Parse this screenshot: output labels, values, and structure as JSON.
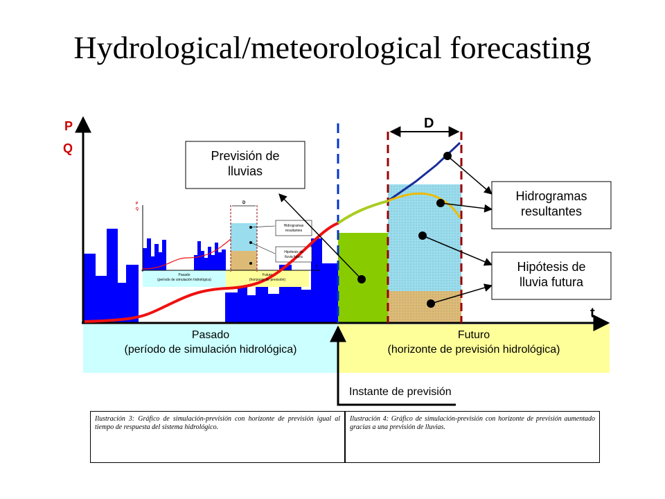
{
  "title": "Hydrological/meteorological forecasting",
  "axes": {
    "y_label_p": "P",
    "y_label_q": "Q",
    "x_label": "t"
  },
  "horizon_label": "D",
  "boxes": {
    "rain_forecast": [
      "Previsión de",
      "lluvias"
    ],
    "resulting_hydrographs": [
      "Hidrogramas",
      "resultantes"
    ],
    "future_rain_hypothesis": [
      "Hipótesis de",
      "lluvia futura"
    ],
    "past": [
      "Pasado",
      "(período de simulación hidrológica)"
    ],
    "future": [
      "Futuro",
      "(horizonte de previsión hidrológica)"
    ],
    "forecast_instant": "Instante de previsión"
  },
  "inset": {
    "axis_p": "P",
    "axis_q": "Q",
    "axis_t": "t",
    "horizon": "D",
    "hydro": [
      "Hidrogramas",
      "resultantes"
    ],
    "hyp": [
      "Hipótesis de",
      "lluvia futura"
    ],
    "past": [
      "Pasado",
      "(período de simulación hidrológica)"
    ],
    "future": [
      "Futuro",
      "(horizonte de previsión)"
    ]
  },
  "captions": {
    "left": "Ilustración 3: Gráfico de simulación-previsión con horizonte de previsión igual al tiempo de respuesta del sistema hidrológico.",
    "right": "Ilustración 4: Gráfico de simulación-previsión con horizonte de previsión aumentado gracias a una previsión de lluvias."
  },
  "colors": {
    "rain_bars": "#0000ff",
    "past_band": "#ccffff",
    "future_band": "#ffff99",
    "observed_flow": "#ee1111",
    "forecast_flow": "#aacc22",
    "forecast_rain_block": "#88cc00",
    "hydrograph_upper": "#1a2e99",
    "hydrograph_mid": "#eebb00",
    "scenario_cyan": "#99ddee",
    "scenario_tan": "#ddbb77",
    "horizon_dash": "#990000",
    "now_dash": "#0033cc"
  }
}
